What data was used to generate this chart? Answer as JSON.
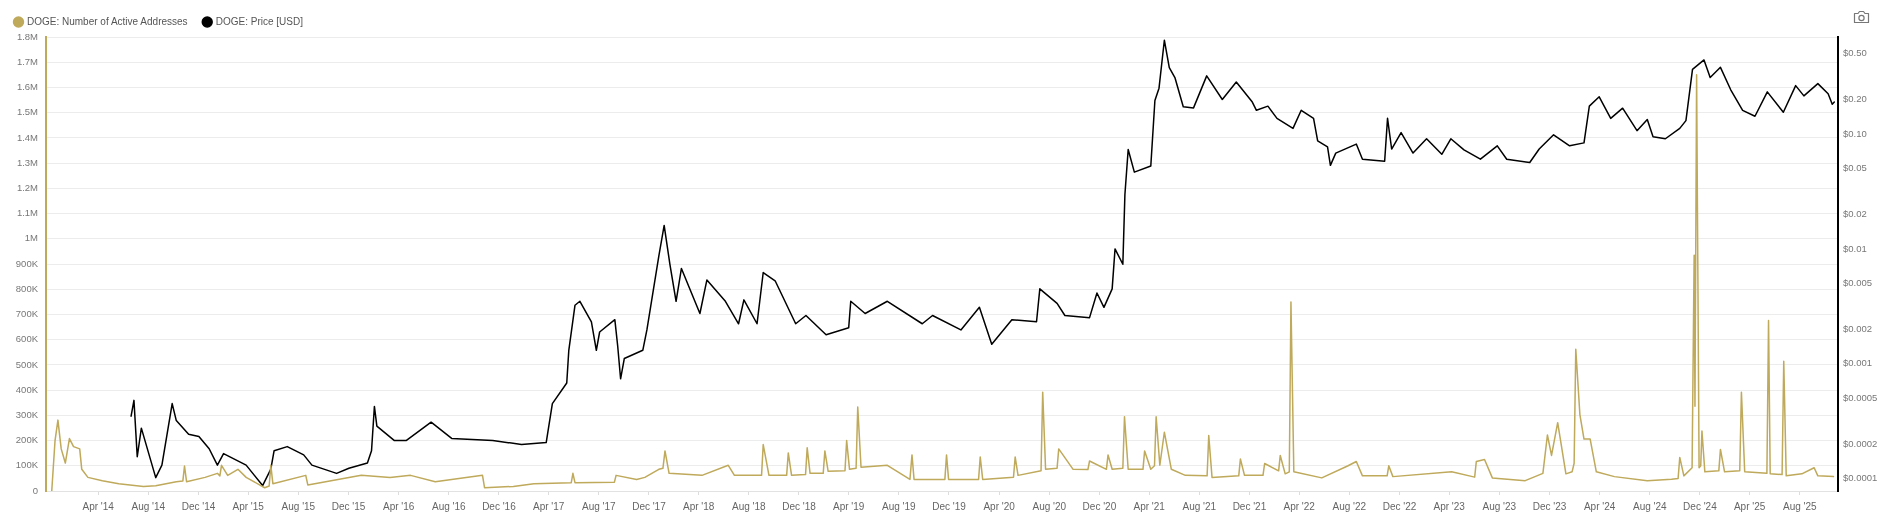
{
  "chart_data": {
    "type": "line",
    "legend": "top left",
    "grid": "y",
    "log": "y2",
    "xlim": [
      "2013-11-25",
      "2025-11-02"
    ],
    "xticks": [
      {
        "value": "2014-04-01",
        "label": "Apr '14"
      },
      {
        "value": "2014-08-01",
        "label": "Aug '14"
      },
      {
        "value": "2014-12-01",
        "label": "Dec '14"
      },
      {
        "value": "2015-04-01",
        "label": "Apr '15"
      },
      {
        "value": "2015-08-01",
        "label": "Aug '15"
      },
      {
        "value": "2015-12-01",
        "label": "Dec '15"
      },
      {
        "value": "2016-04-01",
        "label": "Apr '16"
      },
      {
        "value": "2016-08-01",
        "label": "Aug '16"
      },
      {
        "value": "2016-12-01",
        "label": "Dec '16"
      },
      {
        "value": "2017-04-01",
        "label": "Apr '17"
      },
      {
        "value": "2017-08-01",
        "label": "Aug '17"
      },
      {
        "value": "2017-12-01",
        "label": "Dec '17"
      },
      {
        "value": "2018-04-01",
        "label": "Apr '18"
      },
      {
        "value": "2018-08-01",
        "label": "Aug '18"
      },
      {
        "value": "2018-12-01",
        "label": "Dec '18"
      },
      {
        "value": "2019-04-01",
        "label": "Apr '19"
      },
      {
        "value": "2019-08-01",
        "label": "Aug '19"
      },
      {
        "value": "2019-12-01",
        "label": "Dec '19"
      },
      {
        "value": "2020-04-01",
        "label": "Apr '20"
      },
      {
        "value": "2020-08-01",
        "label": "Aug '20"
      },
      {
        "value": "2020-12-01",
        "label": "Dec '20"
      },
      {
        "value": "2021-04-01",
        "label": "Apr '21"
      },
      {
        "value": "2021-08-01",
        "label": "Aug '21"
      },
      {
        "value": "2021-12-01",
        "label": "Dec '21"
      },
      {
        "value": "2022-04-01",
        "label": "Apr '22"
      },
      {
        "value": "2022-08-01",
        "label": "Aug '22"
      },
      {
        "value": "2022-12-01",
        "label": "Dec '22"
      },
      {
        "value": "2023-04-01",
        "label": "Apr '23"
      },
      {
        "value": "2023-08-01",
        "label": "Aug '23"
      },
      {
        "value": "2023-12-01",
        "label": "Dec '23"
      },
      {
        "value": "2024-04-01",
        "label": "Apr '24"
      },
      {
        "value": "2024-08-01",
        "label": "Aug '24"
      },
      {
        "value": "2024-12-01",
        "label": "Dec '24"
      },
      {
        "value": "2025-04-01",
        "label": "Apr '25"
      },
      {
        "value": "2025-08-01",
        "label": "Aug '25"
      }
    ],
    "ylim": [
      0,
      1800000
    ],
    "yticks": [
      0,
      {
        "value": 100000,
        "label": "100K"
      },
      {
        "value": 200000,
        "label": "200K"
      },
      {
        "value": 300000,
        "label": "300K"
      },
      {
        "value": 400000,
        "label": "400K"
      },
      {
        "value": 500000,
        "label": "500K"
      },
      {
        "value": 600000,
        "label": "600K"
      },
      {
        "value": 700000,
        "label": "700K"
      },
      {
        "value": 800000,
        "label": "800K"
      },
      {
        "value": 900000,
        "label": "900K"
      },
      {
        "value": 1000000,
        "label": "1M"
      },
      {
        "value": 1100000,
        "label": "1.1M"
      },
      {
        "value": 1200000,
        "label": "1.2M"
      },
      {
        "value": 1300000,
        "label": "1.3M"
      },
      {
        "value": 1400000,
        "label": "1.4M"
      },
      {
        "value": 1500000,
        "label": "1.5M"
      },
      {
        "value": 1600000,
        "label": "1.6M"
      },
      {
        "value": 1700000,
        "label": "1.7M"
      },
      {
        "value": 1800000,
        "label": "1.8M"
      }
    ],
    "y2lim": [
      7.8e-05,
      0.7
    ],
    "y2ticks": [
      {
        "value": 0.0001,
        "label": "$0.0001"
      },
      {
        "value": 0.0002,
        "label": "$0.0002"
      },
      {
        "value": 0.0005,
        "label": "$0.0005"
      },
      {
        "value": 0.001,
        "label": "$0.001"
      },
      {
        "value": 0.002,
        "label": "$0.002"
      },
      {
        "value": 0.005,
        "label": "$0.005"
      },
      {
        "value": 0.01,
        "label": "$0.01"
      },
      {
        "value": 0.02,
        "label": "$0.02"
      },
      {
        "value": 0.05,
        "label": "$0.05"
      },
      {
        "value": 0.1,
        "label": "$0.10"
      },
      {
        "value": 0.2,
        "label": "$0.20"
      },
      {
        "value": 0.5,
        "label": "$0.50"
      }
    ],
    "series": [
      {
        "name": "DOGE: Number of Active Addresses",
        "color": "#bfa95b",
        "x": [
          "2013-12-09",
          "2013-12-17",
          "2013-12-24",
          "2014-01-01",
          "2014-01-11",
          "2014-01-21",
          "2014-01-31",
          "2014-02-15",
          "2014-02-20",
          "2014-03-07",
          "2014-04-11",
          "2014-05-21",
          "2014-07-20",
          "2014-08-19",
          "2014-10-08",
          "2014-10-24",
          "2014-10-28",
          "2014-11-02",
          "2014-12-17",
          "2015-01-16",
          "2015-01-22",
          "2015-01-26",
          "2015-02-10",
          "2015-03-07",
          "2015-03-27",
          "2015-05-11",
          "2015-05-22",
          "2015-05-26",
          "2015-05-31",
          "2015-08-19",
          "2015-08-24",
          "2016-01-01",
          "2016-03-11",
          "2016-04-30",
          "2016-06-29",
          "2016-10-22",
          "2016-10-27",
          "2017-01-05",
          "2017-02-24",
          "2017-05-26",
          "2017-05-30",
          "2017-06-04",
          "2017-09-08",
          "2017-09-12",
          "2017-11-01",
          "2017-11-21",
          "2017-12-25",
          "2018-01-04",
          "2018-01-09",
          "2018-01-19",
          "2018-04-09",
          "2018-06-12",
          "2018-06-27",
          "2018-08-16",
          "2018-09-01",
          "2018-09-05",
          "2018-09-19",
          "2018-11-01",
          "2018-11-05",
          "2018-11-13",
          "2018-12-17",
          "2018-12-21",
          "2018-12-28",
          "2019-01-29",
          "2019-02-02",
          "2019-02-10",
          "2019-03-23",
          "2019-03-27",
          "2019-04-03",
          "2019-04-19",
          "2019-04-23",
          "2019-05-01",
          "2019-07-04",
          "2019-08-28",
          "2019-09-02",
          "2019-09-07",
          "2019-11-21",
          "2019-11-25",
          "2019-11-30",
          "2020-02-11",
          "2020-02-15",
          "2020-02-21",
          "2020-05-06",
          "2020-05-10",
          "2020-05-17",
          "2020-07-12",
          "2020-07-16",
          "2020-07-23",
          "2020-08-20",
          "2020-08-24",
          "2020-09-28",
          "2020-11-03",
          "2020-11-07",
          "2020-12-18",
          "2020-12-22",
          "2021-01-01",
          "2021-01-27",
          "2021-01-31",
          "2021-02-09",
          "2021-03-17",
          "2021-03-21",
          "2021-04-05",
          "2021-04-14",
          "2021-04-18",
          "2021-04-27",
          "2021-05-08",
          "2021-05-25",
          "2021-06-28",
          "2021-08-20",
          "2021-08-24",
          "2021-09-01",
          "2021-11-05",
          "2021-11-09",
          "2021-11-19",
          "2022-01-03",
          "2022-01-07",
          "2022-02-10",
          "2022-02-14",
          "2022-02-26",
          "2022-03-08",
          "2022-03-12",
          "2022-03-19",
          "2022-05-26",
          "2022-07-29",
          "2022-08-18",
          "2022-09-02",
          "2022-11-01",
          "2022-11-05",
          "2022-11-15",
          "2023-04-07",
          "2023-06-02",
          "2023-06-06",
          "2023-06-26",
          "2023-07-15",
          "2023-10-03",
          "2023-11-15",
          "2023-11-26",
          "2023-12-06",
          "2023-12-21",
          "2024-01-10",
          "2024-01-25",
          "2024-01-30",
          "2024-02-03",
          "2024-02-13",
          "2024-02-23",
          "2024-03-09",
          "2024-03-24",
          "2024-05-07",
          "2024-07-26",
          "2024-09-23",
          "2024-10-09",
          "2024-10-13",
          "2024-10-23",
          "2024-11-12",
          "2024-11-17",
          "2024-11-19",
          "2024-11-23",
          "2024-11-29",
          "2024-12-03",
          "2024-12-06",
          "2024-12-13",
          "2025-01-16",
          "2025-01-20",
          "2025-01-30",
          "2025-03-08",
          "2025-03-12",
          "2025-03-20",
          "2025-05-13",
          "2025-05-17",
          "2025-05-21",
          "2025-06-19",
          "2025-06-23",
          "2025-06-29",
          "2025-08-06",
          "2025-09-05",
          "2025-09-14",
          "2025-10-22"
        ],
        "values": [
          0,
          200000,
          281000,
          167000,
          111000,
          208000,
          176000,
          167000,
          86000,
          54000,
          41000,
          29000,
          18000,
          21000,
          37000,
          40000,
          99000,
          37000,
          54000,
          70000,
          60000,
          102000,
          62000,
          86000,
          54000,
          13000,
          20000,
          102000,
          29000,
          62000,
          24000,
          62000,
          54000,
          62000,
          37000,
          62000,
          13000,
          18000,
          29000,
          33000,
          70000,
          33000,
          35000,
          62000,
          46000,
          54000,
          86000,
          90000,
          159000,
          70000,
          62000,
          102000,
          62000,
          62000,
          62000,
          184000,
          62000,
          62000,
          151000,
          62000,
          65000,
          171000,
          70000,
          70000,
          159000,
          78000,
          80000,
          200000,
          86000,
          90000,
          333000,
          94000,
          102000,
          46000,
          143000,
          46000,
          46000,
          143000,
          46000,
          46000,
          135000,
          46000,
          55000,
          135000,
          62000,
          80000,
          392000,
          86000,
          90000,
          167000,
          86000,
          85000,
          119000,
          86000,
          143000,
          86000,
          90000,
          294000,
          86000,
          86000,
          159000,
          86000,
          100000,
          294000,
          102000,
          233000,
          86000,
          62000,
          60000,
          220000,
          54000,
          60000,
          127000,
          62000,
          62000,
          109000,
          80000,
          141000,
          68000,
          76000,
          749000,
          76000,
          52000,
          100000,
          117000,
          60000,
          60000,
          100000,
          57000,
          76000,
          55000,
          117000,
          125000,
          52000,
          41000,
          70000,
          222000,
          141000,
          271000,
          68000,
          76000,
          110000,
          562000,
          303000,
          206000,
          206000,
          76000,
          57000,
          41000,
          47000,
          50000,
          133000,
          60000,
          92000,
          935000,
          336000,
          1650000,
          92000,
          100000,
          238000,
          76000,
          80000,
          165000,
          76000,
          80000,
          392000,
          76000,
          70000,
          676000,
          68000,
          65000,
          514000,
          60000,
          68000,
          92000,
          60000,
          57000
        ]
      },
      {
        "name": "DOGE: Price [USD]",
        "color": "#000000",
        "axis": "y2",
        "x": [
          "2014-06-20",
          "2014-06-27",
          "2014-07-05",
          "2014-07-15",
          "2014-08-19",
          "2014-09-03",
          "2014-09-28",
          "2014-10-08",
          "2014-11-07",
          "2014-12-02",
          "2014-12-27",
          "2015-01-16",
          "2015-01-31",
          "2015-03-27",
          "2015-05-06",
          "2015-05-26",
          "2015-06-03",
          "2015-07-05",
          "2015-08-14",
          "2015-09-03",
          "2015-11-02",
          "2015-12-02",
          "2016-01-16",
          "2016-01-26",
          "2016-02-02",
          "2016-02-08",
          "2016-03-21",
          "2016-04-20",
          "2016-06-19",
          "2016-08-08",
          "2016-11-16",
          "2017-01-25",
          "2017-03-26",
          "2017-04-10",
          "2017-05-15",
          "2017-05-20",
          "2017-06-04",
          "2017-06-16",
          "2017-07-14",
          "2017-07-26",
          "2017-08-03",
          "2017-09-09",
          "2017-09-16",
          "2017-09-23",
          "2017-10-02",
          "2017-11-16",
          "2017-11-26",
          "2017-12-25",
          "2018-01-07",
          "2018-01-21",
          "2018-02-05",
          "2018-02-18",
          "2018-04-04",
          "2018-04-21",
          "2018-06-05",
          "2018-07-07",
          "2018-07-20",
          "2018-08-21",
          "2018-09-05",
          "2018-10-04",
          "2018-11-23",
          "2018-12-18",
          "2019-02-05",
          "2019-04-01",
          "2019-04-06",
          "2019-05-11",
          "2019-07-04",
          "2019-09-27",
          "2019-10-22",
          "2019-12-30",
          "2020-02-13",
          "2020-03-14",
          "2020-05-02",
          "2020-07-01",
          "2020-07-09",
          "2020-08-20",
          "2020-09-08",
          "2020-11-07",
          "2020-11-25",
          "2020-12-12",
          "2021-01-01",
          "2021-01-08",
          "2021-01-27",
          "2021-02-01",
          "2021-02-09",
          "2021-02-24",
          "2021-04-05",
          "2021-04-15",
          "2021-04-25",
          "2021-05-08",
          "2021-05-20",
          "2021-06-03",
          "2021-06-23",
          "2021-07-18",
          "2021-08-19",
          "2021-09-26",
          "2021-10-30",
          "2021-12-08",
          "2021-12-18",
          "2022-01-15",
          "2022-02-06",
          "2022-03-17",
          "2022-04-06",
          "2022-05-06",
          "2022-05-16",
          "2022-06-09",
          "2022-06-16",
          "2022-06-29",
          "2022-08-18",
          "2022-09-02",
          "2022-10-26",
          "2022-11-02",
          "2022-11-12",
          "2022-12-05",
          "2023-01-03",
          "2023-02-05",
          "2023-03-14",
          "2023-04-05",
          "2023-05-07",
          "2023-06-16",
          "2023-07-27",
          "2023-08-19",
          "2023-10-14",
          "2023-11-06",
          "2023-12-11",
          "2024-01-19",
          "2024-02-23",
          "2024-03-07",
          "2024-03-31",
          "2024-04-28",
          "2024-05-27",
          "2024-07-01",
          "2024-07-26",
          "2024-08-09",
          "2024-09-08",
          "2024-10-13",
          "2024-10-28",
          "2024-11-13",
          "2024-12-11",
          "2024-12-26",
          "2025-01-20",
          "2025-02-14",
          "2025-03-15",
          "2025-04-14",
          "2025-05-14",
          "2025-06-22",
          "2025-07-22",
          "2025-08-11",
          "2025-09-14",
          "2025-10-09",
          "2025-10-19",
          "2025-10-24"
        ],
        "values": [
          0.00035,
          0.00048,
          0.000155,
          0.000275,
          0.000102,
          0.000131,
          0.00045,
          0.00032,
          0.000243,
          0.000233,
          0.000182,
          0.000131,
          0.000165,
          0.000131,
          8.7e-05,
          0.000121,
          0.000175,
          0.00019,
          0.000161,
          0.000131,
          0.000111,
          0.000123,
          0.000137,
          0.000175,
          0.000425,
          0.000286,
          0.000215,
          0.000215,
          0.00031,
          0.000224,
          0.000215,
          0.000198,
          0.000206,
          0.00045,
          0.00068,
          0.00131,
          0.00323,
          0.0035,
          0.00232,
          0.00131,
          0.00189,
          0.00242,
          0.00142,
          0.00074,
          0.00111,
          0.00131,
          0.00197,
          0.00866,
          0.016,
          0.00735,
          0.0035,
          0.00676,
          0.00274,
          0.00537,
          0.0035,
          0.00223,
          0.0036,
          0.00223,
          0.00623,
          0.00528,
          0.00223,
          0.00263,
          0.00179,
          0.00206,
          0.0035,
          0.00274,
          0.0035,
          0.00223,
          0.00263,
          0.00197,
          0.0031,
          0.00148,
          0.00242,
          0.00232,
          0.00449,
          0.00336,
          0.00263,
          0.00252,
          0.00413,
          0.0031,
          0.00449,
          0.01,
          0.00735,
          0.0296,
          0.0733,
          0.0466,
          0.0527,
          0.196,
          0.251,
          0.656,
          0.378,
          0.308,
          0.173,
          0.169,
          0.321,
          0.2,
          0.284,
          0.19,
          0.161,
          0.175,
          0.137,
          0.112,
          0.161,
          0.137,
          0.0873,
          0.0772,
          0.0534,
          0.0683,
          0.0818,
          0.0604,
          0.058,
          0.137,
          0.0741,
          0.103,
          0.0683,
          0.091,
          0.0667,
          0.091,
          0.0729,
          0.0604,
          0.079,
          0.0604,
          0.0565,
          0.0741,
          0.0986,
          0.079,
          0.0838,
          0.175,
          0.211,
          0.137,
          0.168,
          0.107,
          0.134,
          0.0948,
          0.091,
          0.112,
          0.131,
          0.366,
          0.442,
          0.311,
          0.381,
          0.243,
          0.161,
          0.143,
          0.233,
          0.155,
          0.264,
          0.215,
          0.275,
          0.224,
          0.182,
          0.19
        ]
      }
    ]
  }
}
